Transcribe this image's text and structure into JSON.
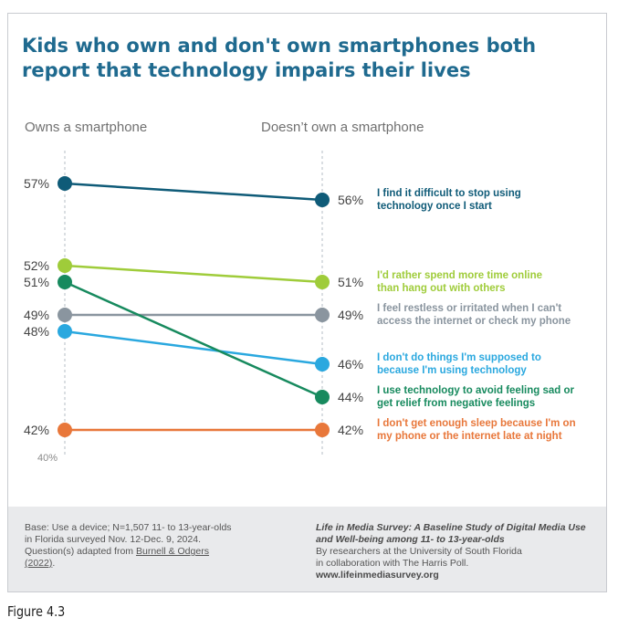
{
  "title": "Kids who own and don't own smartphones both report that technology impairs their lives",
  "figure_label": "Figure 4.3",
  "chart_data": {
    "type": "slope",
    "columns": [
      "Owns a smartphone",
      "Doesn’t own a smartphone"
    ],
    "axis_min_label": "40%",
    "ylim": [
      40,
      59
    ],
    "series": [
      {
        "label_lines": [
          "I find it difficult to stop using",
          "technology once I start"
        ],
        "values": [
          57,
          56
        ],
        "value_labels": [
          "57%",
          "56%"
        ],
        "color": "#0f5b78"
      },
      {
        "label_lines": [
          "I'd rather spend more time online",
          "than hang out with others"
        ],
        "values": [
          52,
          51
        ],
        "value_labels": [
          "52%",
          "51%"
        ],
        "color": "#9fcc3a"
      },
      {
        "label_lines": [
          "I feel restless or irritated when I can't",
          "access the internet or check my phone"
        ],
        "values": [
          49,
          49
        ],
        "value_labels": [
          "49%",
          "49%"
        ],
        "color": "#8a959f"
      },
      {
        "label_lines": [
          "I don't do things I'm supposed to",
          "because I'm using technology"
        ],
        "values": [
          48,
          46
        ],
        "value_labels": [
          "48%",
          "46%"
        ],
        "color": "#2aa8df"
      },
      {
        "label_lines": [
          "I use technology to avoid feeling sad or",
          "get relief from negative feelings"
        ],
        "values": [
          51,
          44
        ],
        "value_labels": [
          "51%",
          "44%"
        ],
        "color": "#178a5e"
      },
      {
        "label_lines": [
          "I don't get enough sleep because I'm on",
          "my phone or the internet late at night"
        ],
        "values": [
          42,
          42
        ],
        "value_labels": [
          "42%",
          "42%"
        ],
        "color": "#e8773a"
      }
    ]
  },
  "footer": {
    "left_lines": [
      "Base: Use a device; N=1,507 11- to 13-year-olds",
      "in Florida surveyed Nov. 12-Dec. 9, 2024.",
      "Question(s) adapted from"
    ],
    "left_link_1": "Burnell & Odgers",
    "left_link_2": "(2022)",
    "left_tail": ".",
    "right_study": "Life in Media Survey: A Baseline Study of Digital Media Use and Well-being among 11- to 13-year-olds",
    "right_lines": [
      "By researchers at the University of South Florida",
      "in collaboration with The Harris Poll."
    ],
    "right_url": "www.lifeinmediasurvey.org"
  }
}
